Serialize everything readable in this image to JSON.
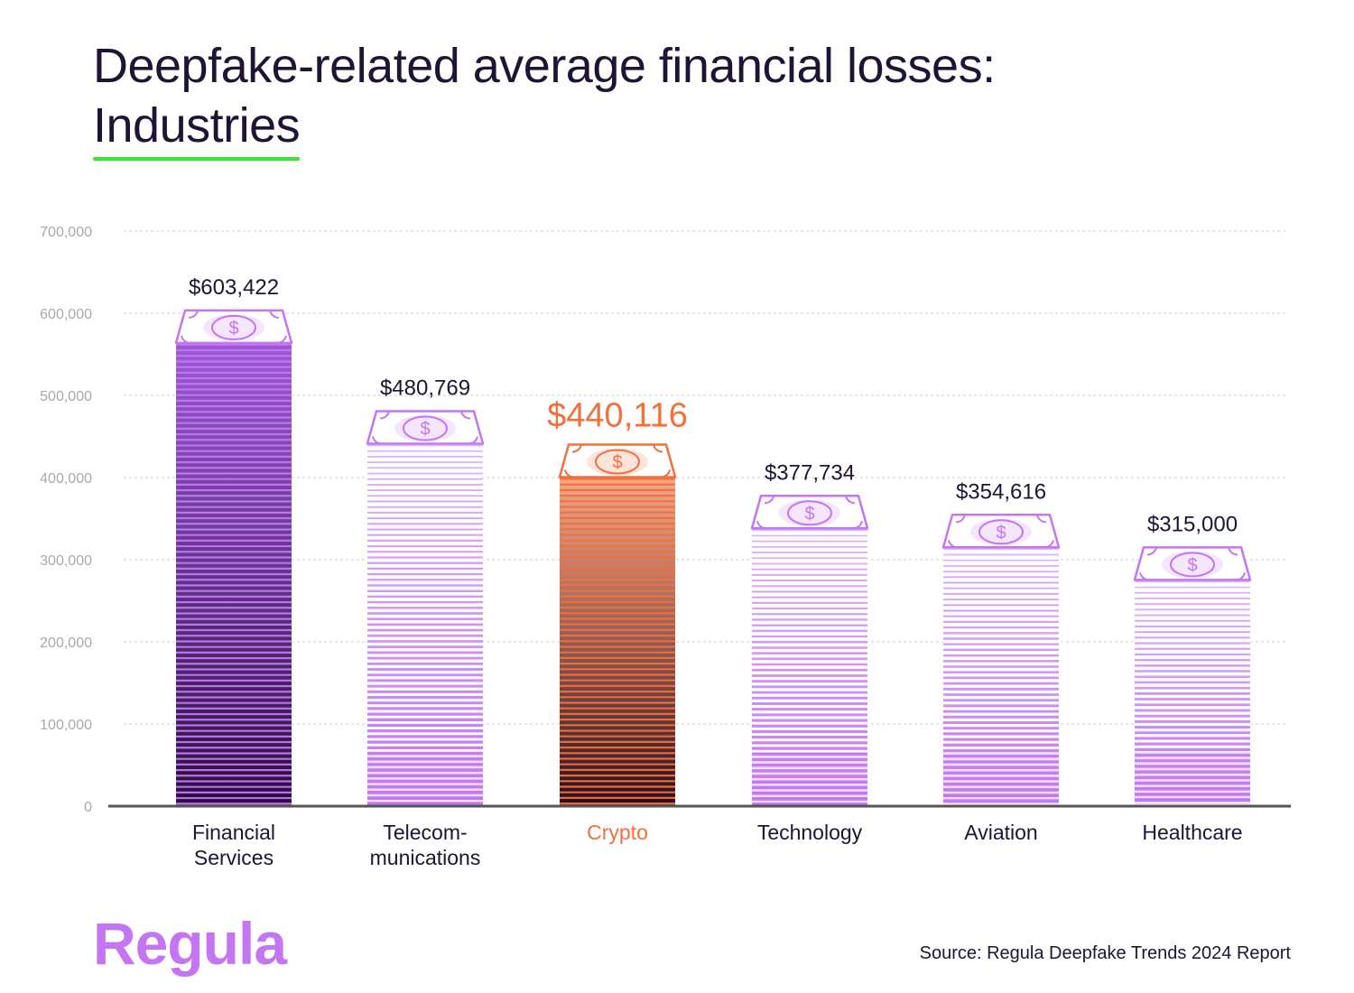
{
  "title": {
    "line1": "Deepfake-related average financial losses:",
    "line2": "Industries"
  },
  "chart_data": {
    "type": "bar",
    "categories": [
      [
        "Financial",
        "Services"
      ],
      [
        "Telecom-",
        "munications"
      ],
      [
        "Crypto"
      ],
      [
        "Technology"
      ],
      [
        "Aviation"
      ],
      [
        "Healthcare"
      ]
    ],
    "values": [
      603422,
      480769,
      440116,
      377734,
      354616,
      315000
    ],
    "value_labels": [
      "$603,422",
      "$480,769",
      "$440,116",
      "$377,734",
      "$354,616",
      "$315,000"
    ],
    "highlight_index": 2,
    "yticks": [
      "0",
      "100,000",
      "200,000",
      "300,000",
      "400,000",
      "500,000",
      "600,000",
      "700,000"
    ],
    "ylim": [
      0,
      700000
    ],
    "grid": true,
    "colors": {
      "bar_light": "#c476f2",
      "bar_dark": "#2a0f3d",
      "bar_top_dark": "#9a5ad6",
      "highlight": "#f2703c",
      "highlight_dark": "#2b0e1e",
      "axis": "#555555",
      "grid": "#cccccc",
      "tick_text": "#a8a8a8",
      "text": "#1f1433"
    },
    "icon": "dollar-banknote-icon"
  },
  "branding": {
    "logo": "Regula"
  },
  "source": "Source: Regula Deepfake Trends 2024 Report"
}
